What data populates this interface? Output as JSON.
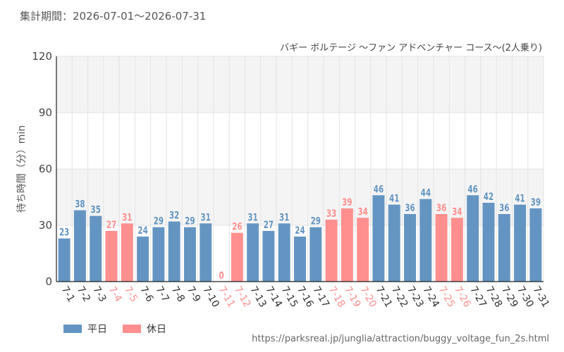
{
  "period": "集計期間：2026-07-01～2026-07-31",
  "source": "https://parksreal.jp/junglia/attraction/buggy_voltage_fun_2s.html",
  "colors": {
    "weekday": "#6495c2",
    "holiday": "#ff8f8f",
    "grid": "#e3e3e3",
    "band": "#f4f4f4"
  },
  "chart_data": {
    "type": "bar",
    "title": "バギー ボルテージ ～ファン アドベンチャー コース～(2人乗り)",
    "ylabel": "待ち時間（分）min",
    "ylim": [
      0,
      120
    ],
    "yticks": [
      0,
      30,
      60,
      90,
      120
    ],
    "grid": true,
    "legend": [
      {
        "name": "平日",
        "color": "#6495c2"
      },
      {
        "name": "休日",
        "color": "#ff8f8f"
      }
    ],
    "legend_position": "bottom-left",
    "categories": [
      "7-1",
      "7-2",
      "7-3",
      "7-4",
      "7-5",
      "7-6",
      "7-7",
      "7-8",
      "7-9",
      "7-10",
      "7-11",
      "7-12",
      "7-13",
      "7-14",
      "7-15",
      "7-16",
      "7-17",
      "7-18",
      "7-19",
      "7-20",
      "7-21",
      "7-22",
      "7-23",
      "7-24",
      "7-25",
      "7-26",
      "7-27",
      "7-28",
      "7-29",
      "7-30",
      "7-31"
    ],
    "values": [
      23,
      38,
      35,
      27,
      31,
      24,
      29,
      32,
      29,
      31,
      0,
      26,
      31,
      27,
      31,
      24,
      29,
      33,
      39,
      34,
      46,
      41,
      36,
      44,
      36,
      34,
      46,
      42,
      36,
      41,
      39
    ],
    "day_type": [
      "平日",
      "平日",
      "平日",
      "休日",
      "休日",
      "平日",
      "平日",
      "平日",
      "平日",
      "平日",
      "休日",
      "休日",
      "平日",
      "平日",
      "平日",
      "平日",
      "平日",
      "休日",
      "休日",
      "休日",
      "平日",
      "平日",
      "平日",
      "平日",
      "休日",
      "休日",
      "平日",
      "平日",
      "平日",
      "平日",
      "平日"
    ]
  }
}
